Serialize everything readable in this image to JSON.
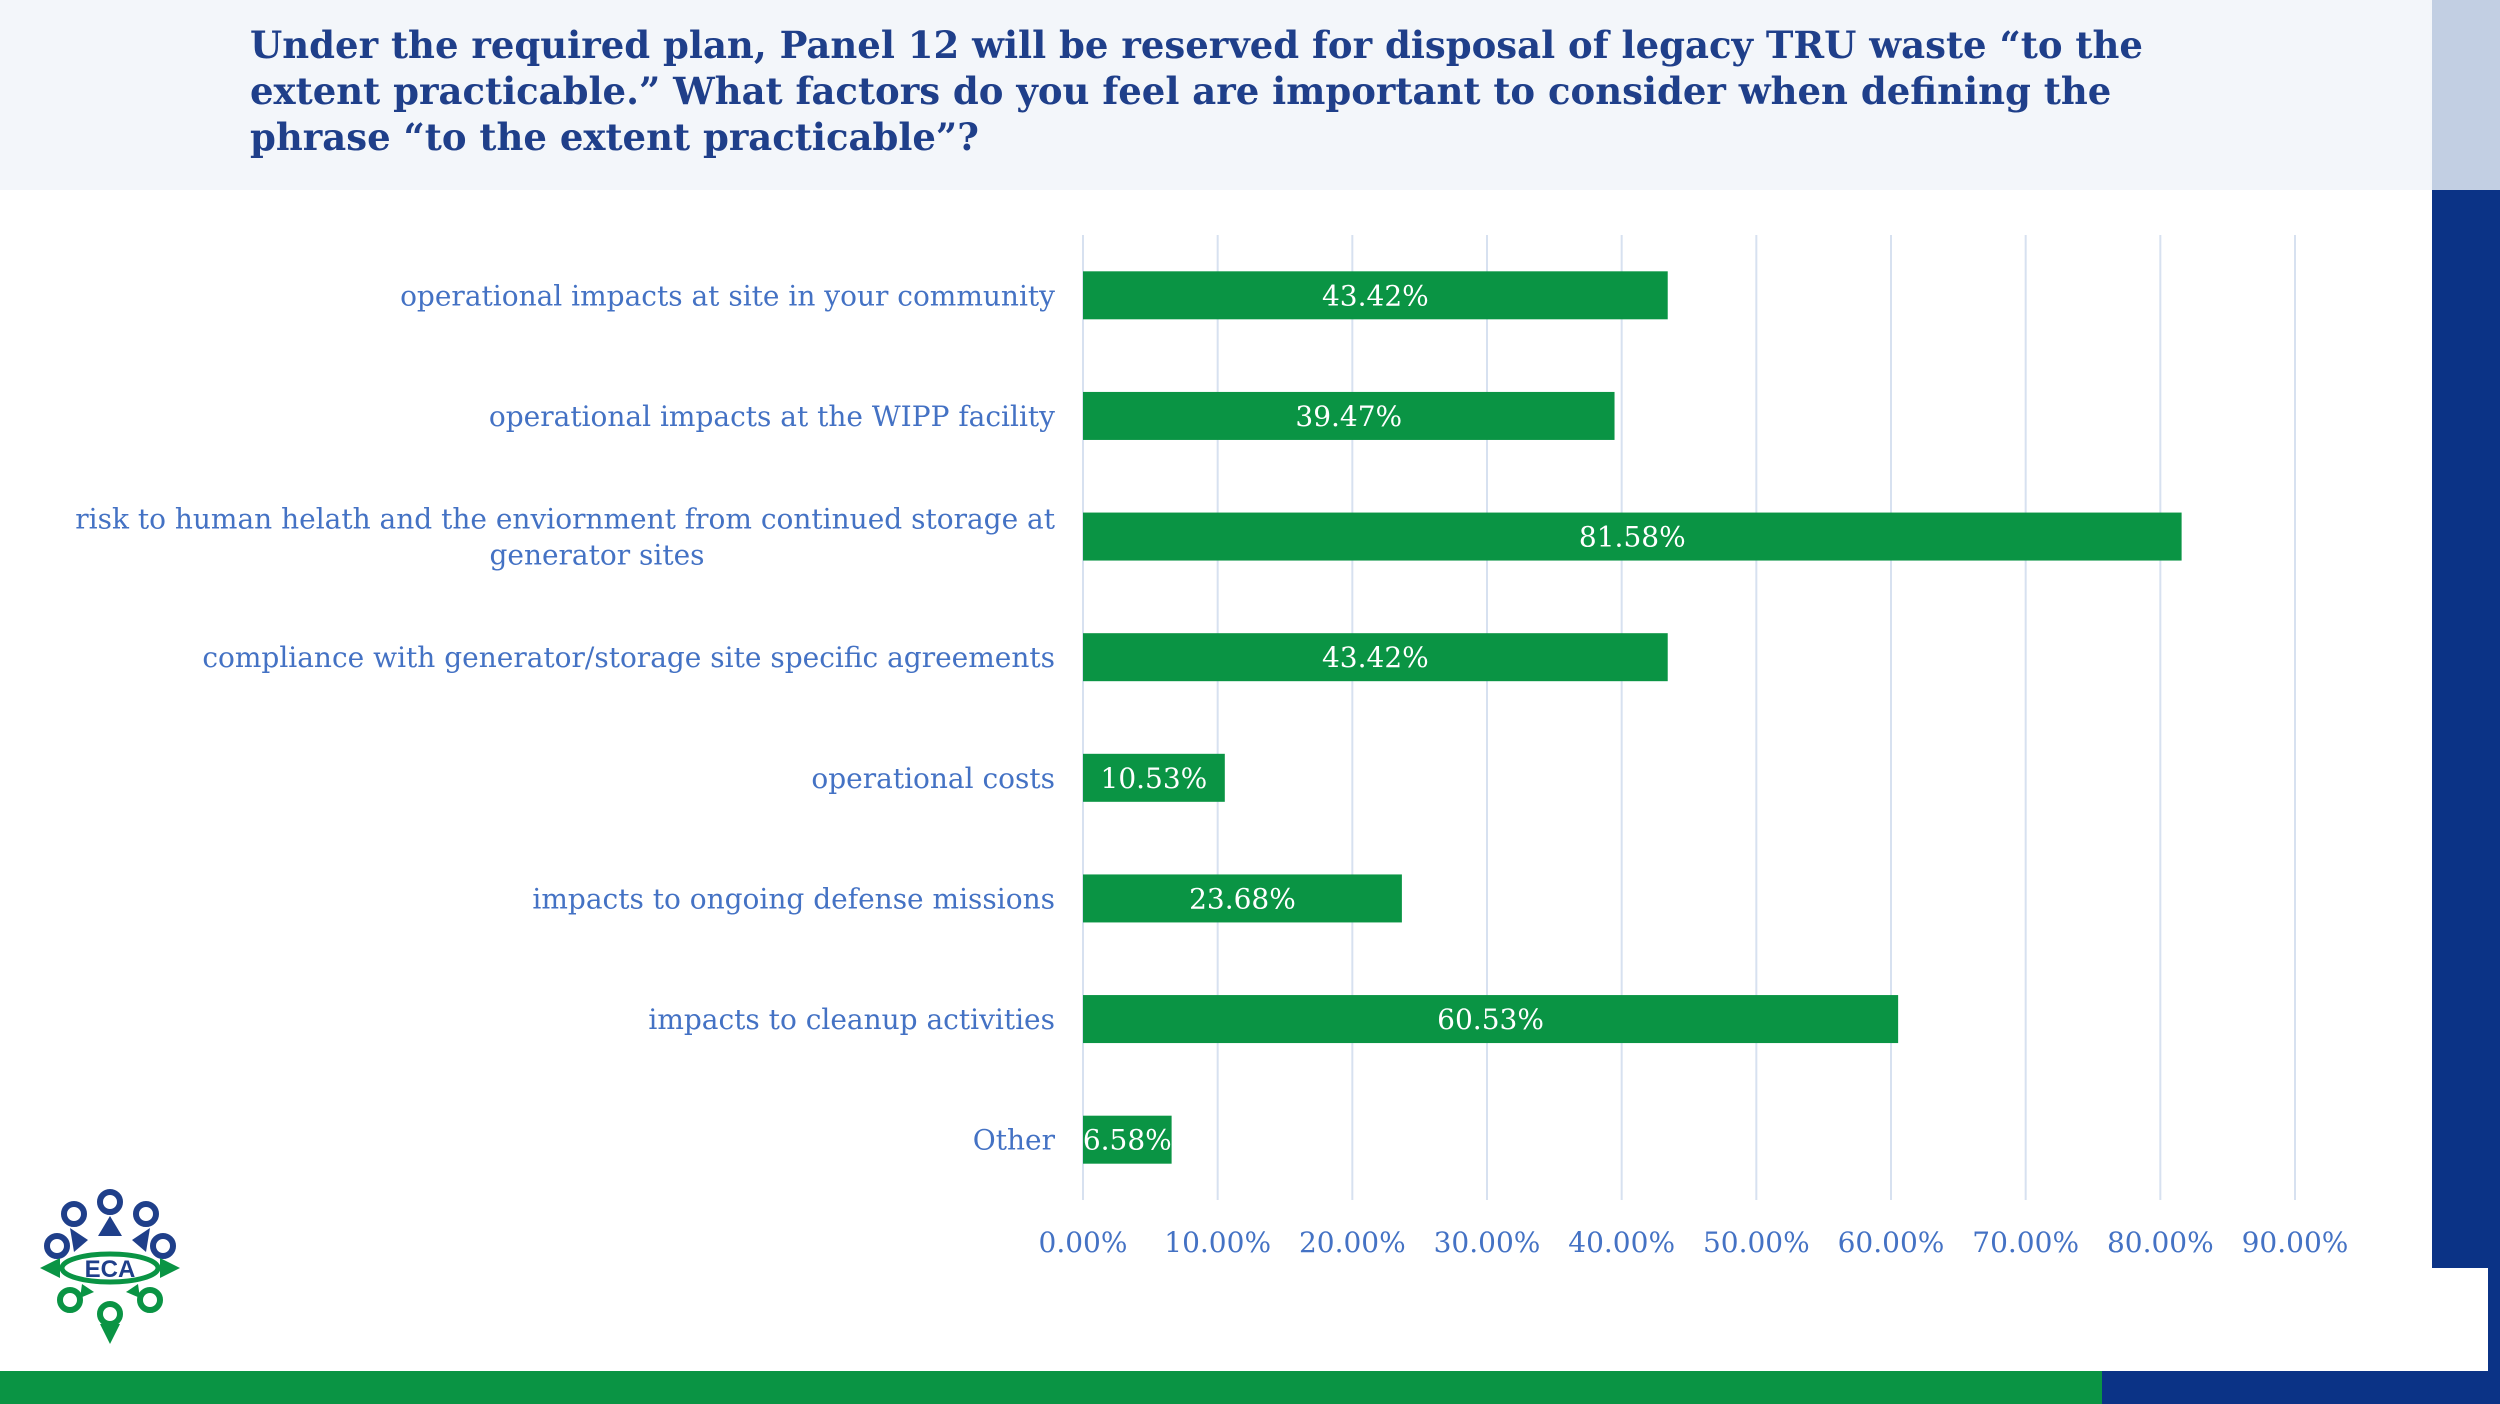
{
  "slide": {
    "title": "Under the required plan, Panel 12 will be reserved for disposal of legacy TRU waste “to the extent practicable.” What factors do you feel are important to consider when defining the phrase “to the extent practicable”?",
    "logo_text": "ECA"
  },
  "colors": {
    "title": "#1f3f8a",
    "bar": "#0a9444",
    "label": "#4472c4",
    "grid": "#d7e1f0",
    "brand_blue": "#0b3386",
    "brand_green": "#0a9444"
  },
  "chart_data": {
    "type": "bar",
    "orientation": "horizontal",
    "categories": [
      "operational impacts at site in your community",
      "operational impacts at the WIPP facility",
      "risk to human helath and the enviornment from continued storage at generator sites",
      "compliance with generator/storage site specific agreements",
      "operational costs",
      "impacts to ongoing defense missions",
      "impacts to cleanup activities",
      "Other"
    ],
    "category_lines": [
      [
        "operational impacts at site in your community"
      ],
      [
        "operational impacts at the WIPP facility"
      ],
      [
        "risk to human helath and the enviornment from continued storage at",
        "generator sites"
      ],
      [
        "compliance with generator/storage site specific agreements"
      ],
      [
        "operational costs"
      ],
      [
        "impacts to ongoing defense missions"
      ],
      [
        "impacts to cleanup activities"
      ],
      [
        "Other"
      ]
    ],
    "values": [
      43.42,
      39.47,
      81.58,
      43.42,
      10.53,
      23.68,
      60.53,
      6.58
    ],
    "data_labels": [
      "43.42%",
      "39.47%",
      "81.58%",
      "43.42%",
      "10.53%",
      "23.68%",
      "60.53%",
      "6.58%"
    ],
    "xlim": [
      0,
      90
    ],
    "xticks": [
      0,
      10,
      20,
      30,
      40,
      50,
      60,
      70,
      80,
      90
    ],
    "xtick_labels": [
      "0.00%",
      "10.00%",
      "20.00%",
      "30.00%",
      "40.00%",
      "50.00%",
      "60.00%",
      "70.00%",
      "80.00%",
      "90.00%"
    ],
    "grid": true,
    "title": "",
    "xlabel": "",
    "ylabel": ""
  }
}
